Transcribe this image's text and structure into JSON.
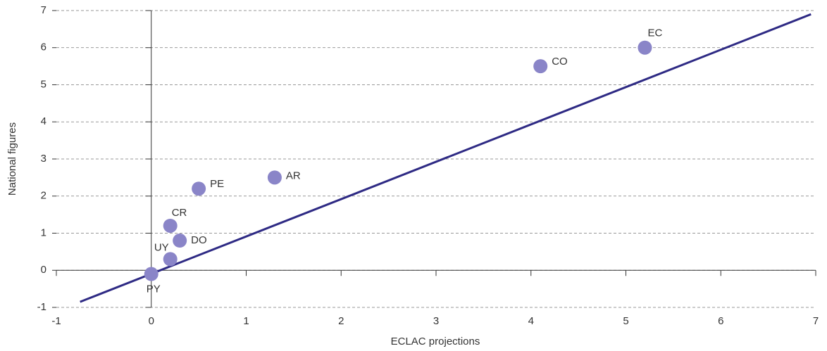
{
  "chart_data": {
    "type": "scatter",
    "x_label": "ECLAC projections",
    "y_label": "National figures",
    "labels": [
      "EC",
      "CO",
      "AR",
      "PE",
      "CR",
      "DO",
      "UY",
      "PY"
    ],
    "x": [
      5.2,
      4.1,
      1.3,
      0.5,
      0.2,
      0.3,
      0.2,
      0.0
    ],
    "y": [
      6.0,
      5.5,
      2.5,
      2.2,
      1.2,
      0.8,
      0.3,
      -0.1
    ],
    "color": "#8a85c8",
    "line": {
      "x": [
        -0.75,
        6.95
      ],
      "y": [
        -0.85,
        6.9
      ],
      "color": "#2e2a84"
    },
    "xlim": [
      -1,
      7
    ],
    "ylim": [
      -1,
      7
    ],
    "xticks": [
      -1,
      0,
      1,
      2,
      3,
      4,
      5,
      6,
      7
    ],
    "yticks": [
      -1,
      0,
      1,
      2,
      3,
      4,
      5,
      6,
      7
    ],
    "grid": true
  }
}
